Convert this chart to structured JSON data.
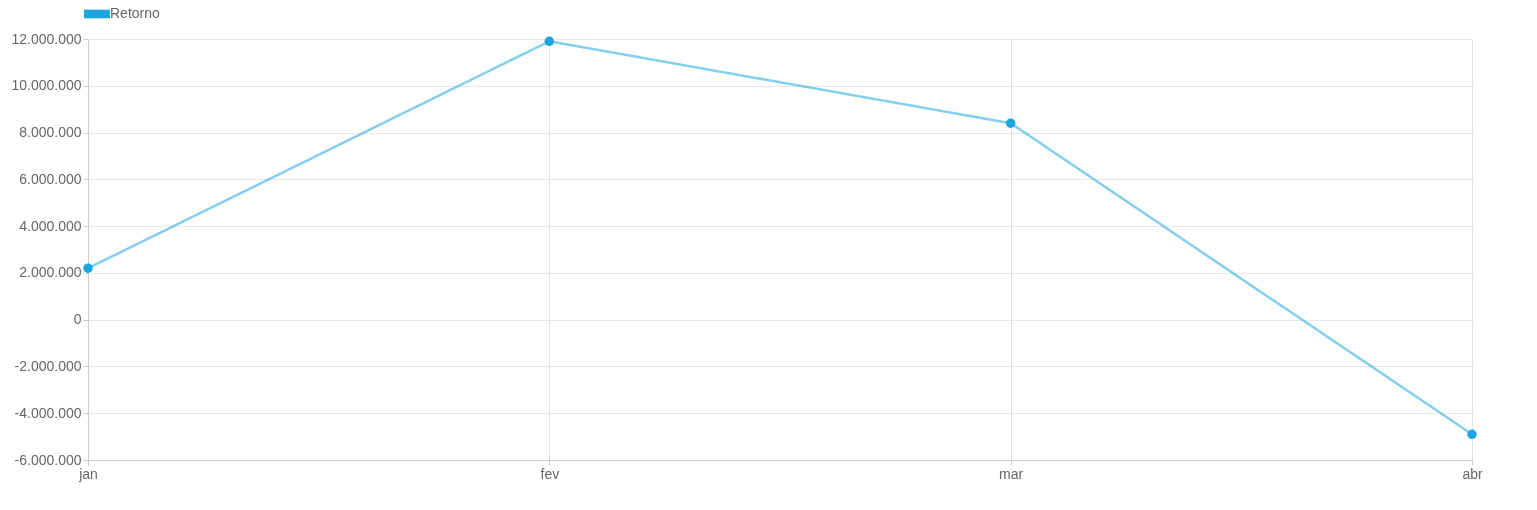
{
  "chart_data": {
    "type": "line",
    "categories": [
      "jan",
      "fev",
      "mar",
      "abr"
    ],
    "series": [
      {
        "name": "Retorno",
        "color": "#1fa5e0",
        "values": [
          2200000,
          11900000,
          8400000,
          -4900000
        ]
      }
    ],
    "ylim": [
      -6000000,
      12000000
    ],
    "yticks": [
      {
        "value": -6000000,
        "label": "-6.000.000"
      },
      {
        "value": -4000000,
        "label": "-4.000.000"
      },
      {
        "value": -2000000,
        "label": "-2.000.000"
      },
      0,
      {
        "value": 2000000,
        "label": "2.000.000"
      },
      {
        "value": 4000000,
        "label": "4.000.000"
      },
      {
        "value": 6000000,
        "label": "6.000.000"
      },
      {
        "value": 8000000,
        "label": "8.000.000"
      },
      {
        "value": 10000000,
        "label": "10.000.000"
      },
      {
        "value": 12000000,
        "label": "12.000.000"
      }
    ],
    "grid": true,
    "legend": "top",
    "marker": "circle"
  }
}
